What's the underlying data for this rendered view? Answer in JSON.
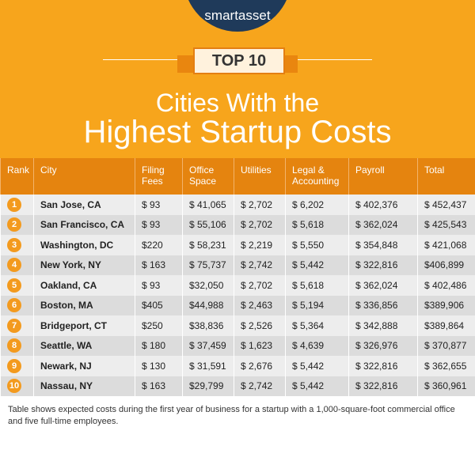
{
  "header": {
    "brand": "smartasset",
    "badge": "TOP 10",
    "title_line1": "Cities With the",
    "title_line2": "Highest Startup Costs"
  },
  "table": {
    "columns": [
      "Rank",
      "City",
      "Filing Fees",
      "Office Space",
      "Utilities",
      "Legal & Accounting",
      "Payroll",
      "Total"
    ],
    "rows": [
      [
        "1",
        "San Jose, CA",
        "$ 93",
        "$ 41,065",
        "$ 2,702",
        "$ 6,202",
        "$ 402,376",
        "$ 452,437"
      ],
      [
        "2",
        "San Francisco, CA",
        "$ 93",
        "$ 55,106",
        "$ 2,702",
        "$ 5,618",
        "$ 362,024",
        "$ 425,543"
      ],
      [
        "3",
        "Washington, DC",
        "$220",
        "$ 58,231",
        "$ 2,219",
        "$ 5,550",
        "$ 354,848",
        "$ 421,068"
      ],
      [
        "4",
        "New York, NY",
        "$ 163",
        "$ 75,737",
        "$ 2,742",
        "$ 5,442",
        "$ 322,816",
        "$406,899"
      ],
      [
        "5",
        "Oakland, CA",
        "$ 93",
        "$32,050",
        "$ 2,702",
        "$ 5,618",
        "$ 362,024",
        "$ 402,486"
      ],
      [
        "6",
        "Boston, MA",
        "$405",
        "$44,988",
        "$ 2,463",
        "$ 5,194",
        "$ 336,856",
        "$389,906"
      ],
      [
        "7",
        "Bridgeport, CT",
        "$250",
        "$38,836",
        "$ 2,526",
        "$ 5,364",
        "$ 342,888",
        "$389,864"
      ],
      [
        "8",
        "Seattle, WA",
        "$ 180",
        "$ 37,459",
        "$ 1,623",
        "$ 4,639",
        "$ 326,976",
        "$ 370,877"
      ],
      [
        "9",
        "Newark, NJ",
        "$ 130",
        "$ 31,591",
        "$ 2,676",
        "$ 5,442",
        "$ 322,816",
        "$ 362,655"
      ],
      [
        "10",
        "Nassau, NY",
        "$ 163",
        "$29,799",
        "$ 2,742",
        "$ 5,442",
        "$ 322,816",
        "$ 360,961"
      ]
    ]
  },
  "footnote": "Table shows expected costs during the first year of business for a startup with a 1,000-square-foot commercial office and five full-time employees."
}
